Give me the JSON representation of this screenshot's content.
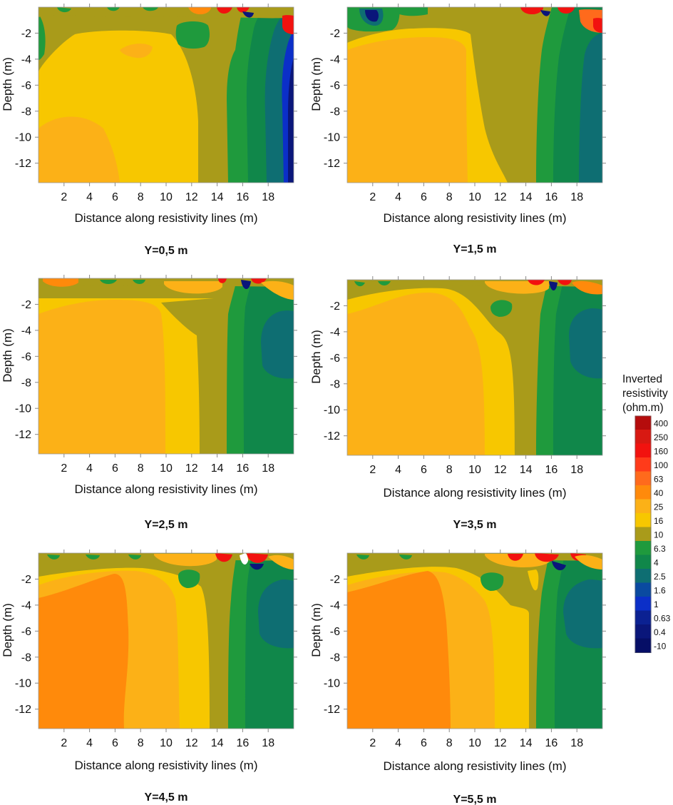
{
  "figure": {
    "legend": {
      "title_lines": [
        "Inverted",
        "resistivity",
        "(ohm.m)"
      ],
      "levels": [
        "400",
        "250",
        "160",
        "100",
        "63",
        "40",
        "25",
        "16",
        "10",
        "6.3",
        "4",
        "2.5",
        "1.6",
        "1",
        "0.63",
        "0.4",
        "-10"
      ],
      "colors": [
        "#b50c0c",
        "#d81912",
        "#f2120f",
        "#ff3b1a",
        "#ff6a1c",
        "#ff8a0b",
        "#fcb117",
        "#f7c700",
        "#a99b1a",
        "#1f9a3d",
        "#10874a",
        "#0e6e72",
        "#0a4aa0",
        "#0b2fc8",
        "#0b2192",
        "#0a167a",
        "#060e66"
      ]
    }
  },
  "chart_data": [
    {
      "type": "heatmap",
      "title": "Y=0,5 m",
      "xlabel": "Distance along resistivity lines (m)",
      "ylabel": "Depth (m)",
      "xlim": [
        0,
        20
      ],
      "ylim": [
        -13.5,
        0
      ],
      "xticks": [
        "2",
        "4",
        "6",
        "8",
        "10",
        "12",
        "14",
        "16",
        "18"
      ],
      "yticks": [
        "-2",
        "-4",
        "-6",
        "-8",
        "-10",
        "-12"
      ],
      "zones": [
        {
          "label": "16-25",
          "x": [
            0,
            12.5
          ],
          "depth": [
            2.5,
            13.5
          ]
        },
        {
          "label": "25-40",
          "x": [
            0,
            6
          ],
          "depth": [
            8.5,
            13.5
          ]
        },
        {
          "label": "10-16",
          "x": [
            12.5,
            14.5
          ],
          "depth": [
            0,
            13.5
          ]
        },
        {
          "label": "6.3-10",
          "x": [
            14.5,
            16
          ],
          "depth": [
            0,
            13.5
          ]
        },
        {
          "label": "4-6.3",
          "x": [
            16,
            18
          ],
          "depth": [
            0,
            13.5
          ]
        },
        {
          "label": "1.6-4",
          "x": [
            18,
            20
          ],
          "depth": [
            0,
            13.5
          ]
        }
      ]
    },
    {
      "type": "heatmap",
      "title": "Y=1,5 m",
      "xlabel": "Distance along resistivity lines (m)",
      "ylabel": "Depth (m)",
      "xlim": [
        0,
        20
      ],
      "ylim": [
        -13.5,
        0
      ],
      "xticks": [
        "2",
        "4",
        "6",
        "8",
        "10",
        "12",
        "14",
        "16",
        "18"
      ],
      "yticks": [
        "-2",
        "-4",
        "-6",
        "-8",
        "-10",
        "-12"
      ],
      "zones": [
        {
          "label": "25-40",
          "x": [
            0,
            9.5
          ],
          "depth": [
            2,
            13.5
          ]
        },
        {
          "label": "16-25",
          "x": [
            9.5,
            12.5
          ],
          "depth": [
            2,
            13.5
          ]
        },
        {
          "label": "10-16",
          "x": [
            12.5,
            15
          ],
          "depth": [
            0,
            13.5
          ]
        },
        {
          "label": "6.3-10",
          "x": [
            15,
            16.5
          ],
          "depth": [
            0,
            13.5
          ]
        },
        {
          "label": "4-6.3",
          "x": [
            16.5,
            20
          ],
          "depth": [
            0,
            13.5
          ]
        }
      ]
    },
    {
      "type": "heatmap",
      "title": "Y=2,5 m",
      "xlabel": "Distance along resistivity lines (m)",
      "ylabel": "Depth (m)",
      "xlim": [
        0,
        20
      ],
      "ylim": [
        -13.5,
        0
      ],
      "xticks": [
        "2",
        "4",
        "6",
        "8",
        "10",
        "12",
        "14",
        "16",
        "18"
      ],
      "yticks": [
        "-2",
        "-4",
        "-6",
        "-8",
        "-10",
        "-12"
      ],
      "zones": [
        {
          "label": "25-40",
          "x": [
            0,
            10
          ],
          "depth": [
            2,
            13.5
          ]
        },
        {
          "label": "16-25",
          "x": [
            10,
            12.5
          ],
          "depth": [
            2,
            13.5
          ]
        },
        {
          "label": "10-16",
          "x": [
            12.5,
            15
          ],
          "depth": [
            0,
            13.5
          ]
        },
        {
          "label": "6.3-10",
          "x": [
            15,
            20
          ],
          "depth": [
            0,
            13.5
          ]
        },
        {
          "label": "4-6.3",
          "x": [
            17.5,
            20
          ],
          "depth": [
            3,
            7.5
          ]
        }
      ]
    },
    {
      "type": "heatmap",
      "title": "Y=3,5 m",
      "xlabel": "Distance along resistivity lines (m)",
      "ylabel": "Depth (m)",
      "xlim": [
        0,
        20
      ],
      "ylim": [
        -13.5,
        0
      ],
      "xticks": [
        "2",
        "4",
        "6",
        "8",
        "10",
        "12",
        "14",
        "16",
        "18"
      ],
      "yticks": [
        "-2",
        "-4",
        "-6",
        "-8",
        "-10",
        "-12"
      ],
      "zones": [
        {
          "label": "25-40",
          "x": [
            0,
            10.5
          ],
          "depth": [
            2,
            13.5
          ]
        },
        {
          "label": "16-25",
          "x": [
            10.5,
            13
          ],
          "depth": [
            2,
            13.5
          ]
        },
        {
          "label": "10-16",
          "x": [
            13,
            15
          ],
          "depth": [
            0,
            13.5
          ]
        },
        {
          "label": "6.3-10",
          "x": [
            15,
            20
          ],
          "depth": [
            0,
            13.5
          ]
        },
        {
          "label": "4-6.3",
          "x": [
            17,
            20
          ],
          "depth": [
            2.5,
            7.5
          ]
        }
      ]
    },
    {
      "type": "heatmap",
      "title": "Y=4,5 m",
      "xlabel": "Distance along resistivity lines (m)",
      "ylabel": "Depth (m)",
      "xlim": [
        0,
        20
      ],
      "ylim": [
        -13.5,
        0
      ],
      "xticks": [
        "2",
        "4",
        "6",
        "8",
        "10",
        "12",
        "14",
        "16",
        "18"
      ],
      "yticks": [
        "-2",
        "-4",
        "-6",
        "-8",
        "-10",
        "-12"
      ],
      "zones": [
        {
          "label": "40-63",
          "x": [
            0,
            7
          ],
          "depth": [
            3.5,
            13.5
          ]
        },
        {
          "label": "25-40",
          "x": [
            7,
            11
          ],
          "depth": [
            2,
            13.5
          ]
        },
        {
          "label": "16-25",
          "x": [
            11,
            13.5
          ],
          "depth": [
            4,
            13.5
          ]
        },
        {
          "label": "10-16",
          "x": [
            13.5,
            15
          ],
          "depth": [
            0,
            13.5
          ]
        },
        {
          "label": "6.3-10",
          "x": [
            15,
            20
          ],
          "depth": [
            0,
            13.5
          ]
        },
        {
          "label": "4-6.3",
          "x": [
            17,
            20
          ],
          "depth": [
            2.5,
            7.5
          ]
        }
      ]
    },
    {
      "type": "heatmap",
      "title": "Y=5,5 m",
      "xlabel": "Distance along resistivity lines (m)",
      "ylabel": "Depth (m)",
      "xlim": [
        0,
        20
      ],
      "ylim": [
        -13.5,
        0
      ],
      "xticks": [
        "2",
        "4",
        "6",
        "8",
        "10",
        "12",
        "14",
        "16",
        "18"
      ],
      "yticks": [
        "-2",
        "-4",
        "-6",
        "-8",
        "-10",
        "-12"
      ],
      "zones": [
        {
          "label": "40-63",
          "x": [
            0,
            8
          ],
          "depth": [
            2,
            13.5
          ]
        },
        {
          "label": "25-40",
          "x": [
            8,
            12
          ],
          "depth": [
            2,
            13.5
          ]
        },
        {
          "label": "16-25",
          "x": [
            12,
            14.5
          ],
          "depth": [
            4,
            13.5
          ]
        },
        {
          "label": "10-16",
          "x": [
            14.5,
            15.5
          ],
          "depth": [
            0,
            13.5
          ]
        },
        {
          "label": "6.3-10",
          "x": [
            15.5,
            20
          ],
          "depth": [
            0,
            13.5
          ]
        },
        {
          "label": "4-6.3",
          "x": [
            17.5,
            20
          ],
          "depth": [
            2.5,
            7.5
          ]
        }
      ]
    }
  ]
}
